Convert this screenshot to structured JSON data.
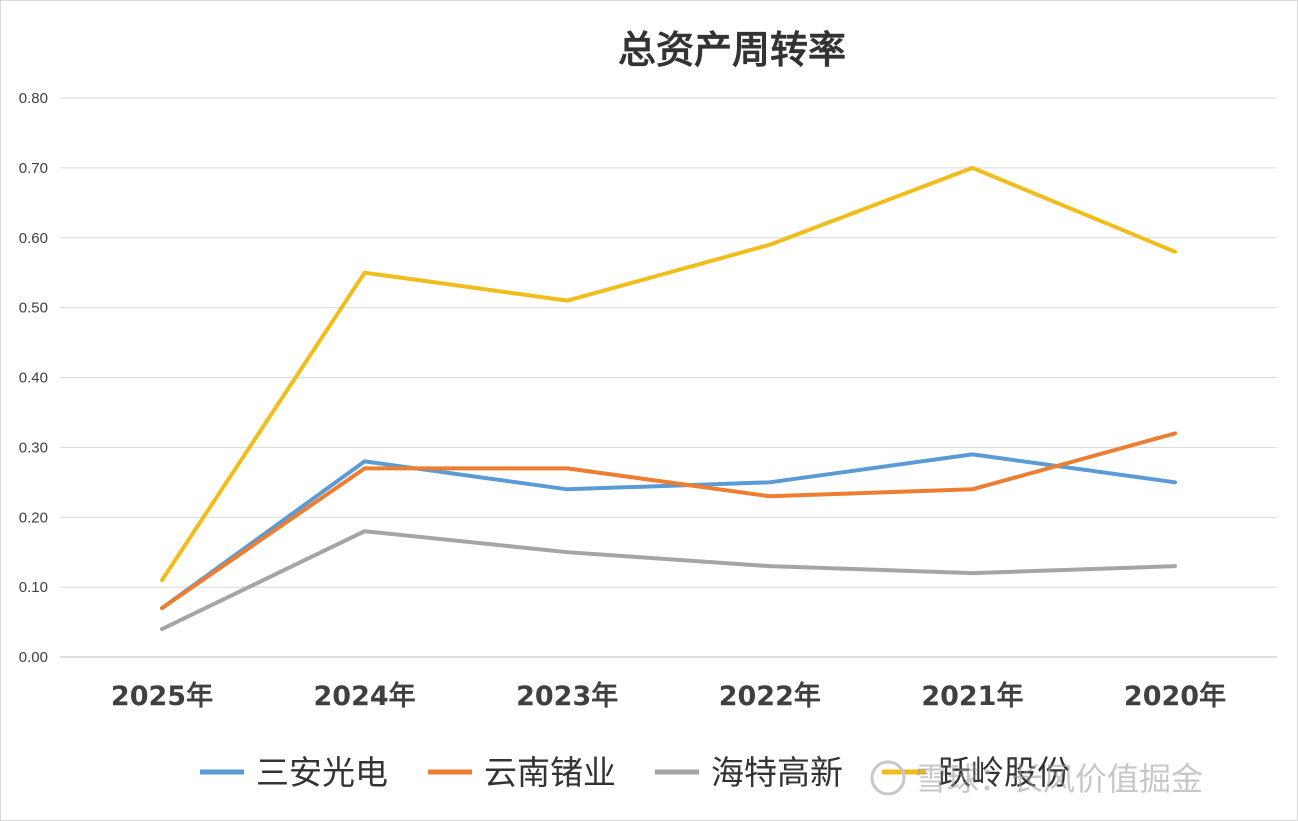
{
  "chart_data": {
    "type": "line",
    "title": "总资产周转率",
    "categories": [
      "2025年",
      "2024年",
      "2023年",
      "2022年",
      "2021年",
      "2020年"
    ],
    "ylim": [
      0,
      0.8
    ],
    "yticks": [
      "0.00",
      "0.10",
      "0.20",
      "0.30",
      "0.40",
      "0.50",
      "0.60",
      "0.70",
      "0.80"
    ],
    "grid": true,
    "legend_position": "bottom",
    "series": [
      {
        "name": "三安光电",
        "color": "#5b9bd5",
        "values": [
          0.07,
          0.28,
          0.24,
          0.25,
          0.29,
          0.25
        ]
      },
      {
        "name": "云南锗业",
        "color": "#ed7d31",
        "values": [
          0.07,
          0.27,
          0.27,
          0.23,
          0.24,
          0.32
        ]
      },
      {
        "name": "海特高新",
        "color": "#a5a5a5",
        "values": [
          0.04,
          0.18,
          0.15,
          0.13,
          0.12,
          0.13
        ]
      },
      {
        "name": "跃岭股份",
        "color": "#f0bd1a",
        "values": [
          0.11,
          0.55,
          0.51,
          0.59,
          0.7,
          0.58
        ]
      }
    ]
  },
  "watermark": "雪球：长风价值掘金"
}
